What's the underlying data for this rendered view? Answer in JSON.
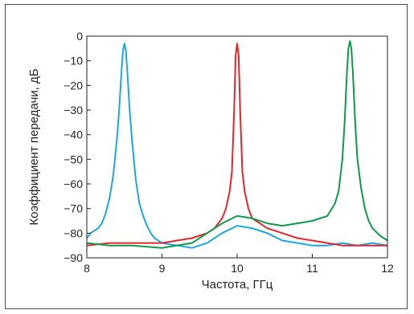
{
  "chart_data": {
    "type": "line",
    "title": "",
    "xlabel": "Частота, ГГц",
    "ylabel": "Коэффициент передачи, дБ",
    "xlim": [
      8,
      12
    ],
    "ylim": [
      -90,
      0
    ],
    "xticks": [
      "8",
      "9",
      "10",
      "11",
      "12"
    ],
    "yticks": [
      "0",
      "−10",
      "−20",
      "−30",
      "−40",
      "−50",
      "−60",
      "−70",
      "−80",
      "−90"
    ],
    "grid": false,
    "legend": "none",
    "series": [
      {
        "color": "#1ba8e0",
        "x": [
          8.0,
          8.05,
          8.1,
          8.15,
          8.2,
          8.25,
          8.3,
          8.35,
          8.4,
          8.43,
          8.46,
          8.48,
          8.5,
          8.52,
          8.54,
          8.57,
          8.6,
          8.65,
          8.7,
          8.75,
          8.8,
          8.85,
          8.9,
          9.0,
          9.2,
          9.4,
          9.6,
          9.8,
          10.0,
          10.2,
          10.4,
          10.6,
          10.8,
          11.0,
          11.2,
          11.4,
          11.6,
          11.8,
          12.0
        ],
        "y": [
          -82,
          -80,
          -79,
          -78,
          -76,
          -72,
          -66,
          -57,
          -42,
          -30,
          -15,
          -6,
          -3,
          -6,
          -15,
          -30,
          -42,
          -58,
          -68,
          -73,
          -77,
          -80,
          -82,
          -84,
          -85,
          -86,
          -84,
          -80,
          -77,
          -78,
          -80,
          -83,
          -84,
          -85,
          -85,
          -84,
          -85,
          -84,
          -85
        ]
      },
      {
        "color": "#e3262b",
        "x": [
          8.0,
          8.3,
          8.6,
          9.0,
          9.2,
          9.4,
          9.6,
          9.7,
          9.8,
          9.85,
          9.9,
          9.93,
          9.96,
          9.98,
          10.0,
          10.02,
          10.04,
          10.07,
          10.1,
          10.15,
          10.2,
          10.3,
          10.4,
          10.6,
          10.8,
          11.0,
          11.2,
          11.4,
          11.6,
          11.8,
          12.0
        ],
        "y": [
          -85,
          -84,
          -84,
          -84,
          -83,
          -82,
          -80,
          -78,
          -74,
          -70,
          -63,
          -55,
          -30,
          -8,
          -3,
          -8,
          -30,
          -55,
          -63,
          -70,
          -74,
          -76,
          -78,
          -80,
          -82,
          -83,
          -84,
          -85,
          -85,
          -85,
          -85
        ]
      },
      {
        "color": "#0d9a4a",
        "x": [
          8.0,
          8.3,
          8.6,
          9.0,
          9.4,
          9.6,
          9.8,
          10.0,
          10.2,
          10.4,
          10.6,
          10.8,
          11.0,
          11.2,
          11.3,
          11.35,
          11.4,
          11.43,
          11.46,
          11.48,
          11.5,
          11.52,
          11.54,
          11.57,
          11.6,
          11.65,
          11.7,
          11.75,
          11.8,
          11.9,
          12.0
        ],
        "y": [
          -84,
          -85,
          -85,
          -86,
          -84,
          -80,
          -76,
          -73,
          -74,
          -76,
          -77,
          -76,
          -75,
          -73,
          -68,
          -63,
          -50,
          -35,
          -15,
          -5,
          -2,
          -5,
          -15,
          -35,
          -50,
          -62,
          -70,
          -75,
          -78,
          -81,
          -83
        ]
      }
    ]
  }
}
